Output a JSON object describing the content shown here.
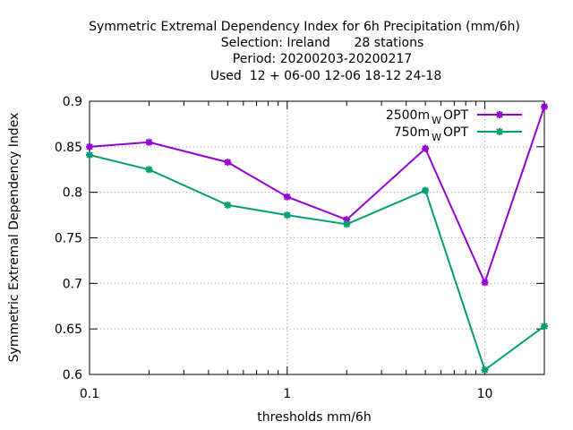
{
  "chart_data": {
    "type": "line",
    "title_lines": [
      "Symmetric Extremal Dependency Index  for 6h Precipitation (mm/6h)",
      "Selection: Ireland      28 stations",
      "Period: 20200203-20200217",
      "Used  12 + 06-00 12-06 18-12 24-18"
    ],
    "xlabel": "thresholds mm/6h",
    "ylabel": "Symmetric Extremal Dependency Index",
    "x_scale": "log",
    "xlim": [
      0.1,
      20
    ],
    "ylim": [
      0.6,
      0.9
    ],
    "x_tick_labels": [
      {
        "value": 0.1,
        "label": "0.1"
      },
      {
        "value": 1,
        "label": "1"
      },
      {
        "value": 10,
        "label": "10"
      }
    ],
    "x_minor_ticks": [
      0.2,
      0.5,
      2,
      5,
      20
    ],
    "y_ticks": [
      {
        "value": 0.6,
        "label": "0.6"
      },
      {
        "value": 0.65,
        "label": "0.65"
      },
      {
        "value": 0.7,
        "label": "0.7"
      },
      {
        "value": 0.75,
        "label": "0.75"
      },
      {
        "value": 0.8,
        "label": "0.8"
      },
      {
        "value": 0.85,
        "label": "0.85"
      },
      {
        "value": 0.9,
        "label": "0.9"
      }
    ],
    "grid": true,
    "legend_position": "top-right",
    "x": [
      0.1,
      0.2,
      0.5,
      1,
      2,
      5,
      10,
      20
    ],
    "series": [
      {
        "name": "2500m",
        "name_sub": "W",
        "name_suffix": "OPT",
        "color": "#9400d3",
        "values": [
          0.85,
          0.855,
          0.833,
          0.795,
          0.77,
          0.848,
          0.701,
          0.894
        ]
      },
      {
        "name": "750m",
        "name_sub": "W",
        "name_suffix": "OPT",
        "color": "#009e73",
        "values": [
          0.841,
          0.825,
          0.786,
          0.775,
          0.765,
          0.802,
          0.605,
          0.653
        ]
      }
    ]
  }
}
